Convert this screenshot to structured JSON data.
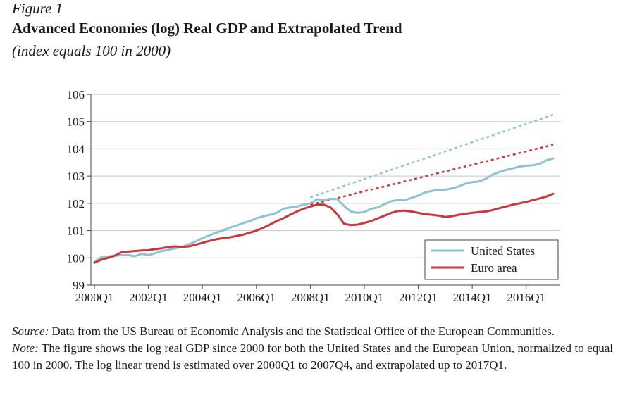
{
  "figure": {
    "label": "Figure 1",
    "title": "Advanced Economies (log) Real GDP and Extrapolated Trend",
    "subtitle": "(index equals 100 in 2000)"
  },
  "chart_data": {
    "type": "line",
    "ylim": [
      99,
      106
    ],
    "yticks": [
      99,
      100,
      101,
      102,
      103,
      104,
      105,
      106
    ],
    "xticks": [
      "2000Q1",
      "2002Q1",
      "2004Q1",
      "2006Q1",
      "2008Q1",
      "2010Q1",
      "2012Q1",
      "2014Q1",
      "2016Q1"
    ],
    "x_range": [
      2000.0,
      2017.0
    ],
    "grid": true,
    "legend_position": "bottom-right",
    "colors": {
      "united_states": "#8ec3d1",
      "euro_area": "#c8383e"
    },
    "series": [
      {
        "name": "United States",
        "style": "solid",
        "points": [
          [
            2000.0,
            99.85
          ],
          [
            2000.25,
            100.02
          ],
          [
            2000.5,
            100.05
          ],
          [
            2000.75,
            100.08
          ],
          [
            2001.0,
            100.1
          ],
          [
            2001.25,
            100.1
          ],
          [
            2001.5,
            100.06
          ],
          [
            2001.75,
            100.15
          ],
          [
            2002.0,
            100.1
          ],
          [
            2002.25,
            100.17
          ],
          [
            2002.5,
            100.25
          ],
          [
            2002.75,
            100.3
          ],
          [
            2003.0,
            100.35
          ],
          [
            2003.25,
            100.4
          ],
          [
            2003.5,
            100.5
          ],
          [
            2003.75,
            100.6
          ],
          [
            2004.0,
            100.72
          ],
          [
            2004.25,
            100.82
          ],
          [
            2004.5,
            100.92
          ],
          [
            2004.75,
            101.0
          ],
          [
            2005.0,
            101.1
          ],
          [
            2005.25,
            101.18
          ],
          [
            2005.5,
            101.27
          ],
          [
            2005.75,
            101.35
          ],
          [
            2006.0,
            101.45
          ],
          [
            2006.25,
            101.52
          ],
          [
            2006.5,
            101.58
          ],
          [
            2006.75,
            101.65
          ],
          [
            2007.0,
            101.8
          ],
          [
            2007.25,
            101.85
          ],
          [
            2007.5,
            101.88
          ],
          [
            2007.75,
            101.95
          ],
          [
            2008.0,
            102.0
          ],
          [
            2008.25,
            102.15
          ],
          [
            2008.5,
            102.12
          ],
          [
            2008.75,
            102.17
          ],
          [
            2009.0,
            102.15
          ],
          [
            2009.25,
            101.9
          ],
          [
            2009.5,
            101.7
          ],
          [
            2009.75,
            101.65
          ],
          [
            2010.0,
            101.68
          ],
          [
            2010.25,
            101.8
          ],
          [
            2010.5,
            101.85
          ],
          [
            2010.75,
            101.97
          ],
          [
            2011.0,
            102.08
          ],
          [
            2011.25,
            102.12
          ],
          [
            2011.5,
            102.12
          ],
          [
            2011.75,
            102.2
          ],
          [
            2012.0,
            102.28
          ],
          [
            2012.25,
            102.4
          ],
          [
            2012.5,
            102.45
          ],
          [
            2012.75,
            102.5
          ],
          [
            2013.0,
            102.5
          ],
          [
            2013.25,
            102.55
          ],
          [
            2013.5,
            102.62
          ],
          [
            2013.75,
            102.72
          ],
          [
            2014.0,
            102.78
          ],
          [
            2014.25,
            102.8
          ],
          [
            2014.5,
            102.9
          ],
          [
            2014.75,
            103.05
          ],
          [
            2015.0,
            103.15
          ],
          [
            2015.25,
            103.22
          ],
          [
            2015.5,
            103.28
          ],
          [
            2015.75,
            103.35
          ],
          [
            2016.0,
            103.38
          ],
          [
            2016.25,
            103.4
          ],
          [
            2016.5,
            103.45
          ],
          [
            2016.75,
            103.58
          ],
          [
            2017.0,
            103.65
          ]
        ]
      },
      {
        "name": "Euro area",
        "style": "solid",
        "points": [
          [
            2000.0,
            99.82
          ],
          [
            2000.25,
            99.93
          ],
          [
            2000.5,
            100.0
          ],
          [
            2000.75,
            100.08
          ],
          [
            2001.0,
            100.2
          ],
          [
            2001.25,
            100.23
          ],
          [
            2001.5,
            100.25
          ],
          [
            2001.75,
            100.27
          ],
          [
            2002.0,
            100.28
          ],
          [
            2002.25,
            100.32
          ],
          [
            2002.5,
            100.35
          ],
          [
            2002.75,
            100.4
          ],
          [
            2003.0,
            100.42
          ],
          [
            2003.25,
            100.4
          ],
          [
            2003.5,
            100.42
          ],
          [
            2003.75,
            100.48
          ],
          [
            2004.0,
            100.55
          ],
          [
            2004.25,
            100.62
          ],
          [
            2004.5,
            100.68
          ],
          [
            2004.75,
            100.72
          ],
          [
            2005.0,
            100.75
          ],
          [
            2005.25,
            100.8
          ],
          [
            2005.5,
            100.85
          ],
          [
            2005.75,
            100.92
          ],
          [
            2006.0,
            101.0
          ],
          [
            2006.25,
            101.1
          ],
          [
            2006.5,
            101.22
          ],
          [
            2006.75,
            101.35
          ],
          [
            2007.0,
            101.45
          ],
          [
            2007.25,
            101.58
          ],
          [
            2007.5,
            101.7
          ],
          [
            2007.75,
            101.8
          ],
          [
            2008.0,
            101.88
          ],
          [
            2008.25,
            101.95
          ],
          [
            2008.5,
            101.95
          ],
          [
            2008.75,
            101.85
          ],
          [
            2009.0,
            101.6
          ],
          [
            2009.25,
            101.25
          ],
          [
            2009.5,
            101.2
          ],
          [
            2009.75,
            101.22
          ],
          [
            2010.0,
            101.28
          ],
          [
            2010.25,
            101.35
          ],
          [
            2010.5,
            101.45
          ],
          [
            2010.75,
            101.55
          ],
          [
            2011.0,
            101.65
          ],
          [
            2011.25,
            101.72
          ],
          [
            2011.5,
            101.73
          ],
          [
            2011.75,
            101.7
          ],
          [
            2012.0,
            101.65
          ],
          [
            2012.25,
            101.6
          ],
          [
            2012.5,
            101.58
          ],
          [
            2012.75,
            101.55
          ],
          [
            2013.0,
            101.5
          ],
          [
            2013.25,
            101.53
          ],
          [
            2013.5,
            101.58
          ],
          [
            2013.75,
            101.62
          ],
          [
            2014.0,
            101.65
          ],
          [
            2014.25,
            101.68
          ],
          [
            2014.5,
            101.7
          ],
          [
            2014.75,
            101.75
          ],
          [
            2015.0,
            101.82
          ],
          [
            2015.25,
            101.88
          ],
          [
            2015.5,
            101.95
          ],
          [
            2015.75,
            102.0
          ],
          [
            2016.0,
            102.05
          ],
          [
            2016.25,
            102.12
          ],
          [
            2016.5,
            102.18
          ],
          [
            2016.75,
            102.25
          ],
          [
            2017.0,
            102.35
          ]
        ]
      },
      {
        "name": "",
        "style": "dashed",
        "color_key": "united_states",
        "points": [
          [
            2008.0,
            102.22
          ],
          [
            2017.0,
            105.25
          ]
        ]
      },
      {
        "name": "",
        "style": "dashed",
        "color_key": "euro_area",
        "points": [
          [
            2008.0,
            101.95
          ],
          [
            2017.0,
            104.15
          ]
        ]
      }
    ]
  },
  "notes": {
    "source_label": "Source:",
    "source_text": " Data from the US Bureau of Economic Analysis and the Statistical Office of the European Communities.",
    "note_label": "Note:",
    "note_text": " The figure shows the log real GDP since 2000 for both the United States and the European Union, normalized to equal 100 in 2000. The log linear trend is estimated over 2000Q1 to 2007Q4, and extrapolated up to 2017Q1."
  }
}
